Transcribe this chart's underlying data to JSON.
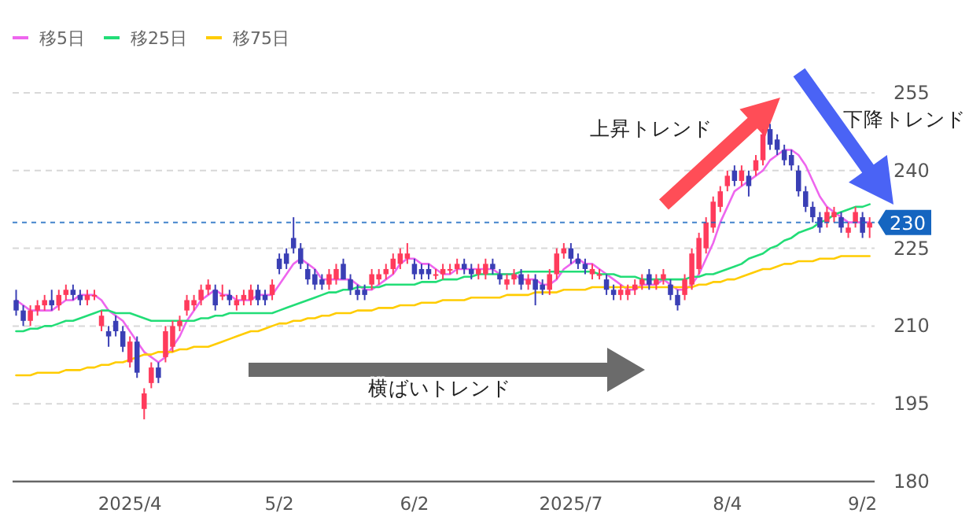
{
  "chart_data": {
    "type": "candlestick",
    "categories": [
      null,
      null,
      null,
      null,
      null,
      null,
      null,
      null,
      null,
      null,
      null,
      null,
      null,
      null,
      null,
      null,
      "2025/4",
      null,
      null,
      null,
      null,
      null,
      null,
      null,
      null,
      null,
      null,
      null,
      null,
      null,
      null,
      null,
      null,
      null,
      null,
      null,
      null,
      "5/2",
      null,
      null,
      null,
      null,
      null,
      null,
      null,
      null,
      null,
      null,
      null,
      null,
      null,
      null,
      null,
      null,
      null,
      null,
      "6/2",
      null,
      null,
      null,
      null,
      null,
      null,
      null,
      null,
      null,
      null,
      null,
      null,
      null,
      null,
      null,
      null,
      null,
      null,
      null,
      null,
      null,
      "2025/7",
      null,
      null,
      null,
      null,
      null,
      null,
      null,
      null,
      null,
      null,
      null,
      null,
      null,
      null,
      null,
      null,
      null,
      null,
      null,
      null,
      null,
      "8/4",
      null,
      null,
      null,
      null,
      null,
      null,
      null,
      null,
      null,
      null,
      null,
      null,
      null,
      null,
      null,
      null,
      null,
      null,
      "9/2",
      null
    ],
    "ohlc": [
      [
        215,
        217,
        212,
        213
      ],
      [
        213,
        214,
        210,
        211
      ],
      [
        211,
        214,
        210,
        213
      ],
      [
        213,
        215,
        212,
        214
      ],
      [
        214,
        216,
        213,
        215
      ],
      [
        215,
        217,
        213,
        214
      ],
      [
        214,
        217,
        213,
        216
      ],
      [
        216,
        218,
        215,
        217
      ],
      [
        217,
        218,
        215,
        216
      ],
      [
        216,
        217,
        214,
        215
      ],
      [
        215,
        217,
        214,
        216
      ],
      [
        216,
        217,
        215,
        216
      ],
      [
        210,
        213,
        209,
        212
      ],
      [
        209,
        210,
        206,
        208
      ],
      [
        211,
        212,
        208,
        209
      ],
      [
        209,
        210,
        205,
        206
      ],
      [
        203,
        208,
        202,
        207
      ],
      [
        207,
        208,
        200,
        201
      ],
      [
        194,
        198,
        192,
        197
      ],
      [
        199,
        203,
        198,
        202
      ],
      [
        202,
        203,
        199,
        200
      ],
      [
        204,
        210,
        203,
        209
      ],
      [
        206,
        211,
        205,
        210
      ],
      [
        210,
        212,
        209,
        211
      ],
      [
        213,
        216,
        212,
        215
      ],
      [
        214,
        216,
        213,
        215
      ],
      [
        215,
        218,
        214,
        217
      ],
      [
        217,
        219,
        216,
        218
      ],
      [
        217,
        218,
        213,
        214
      ],
      [
        216,
        218,
        215,
        216
      ],
      [
        216,
        217,
        214,
        215
      ],
      [
        214,
        216,
        213,
        215
      ],
      [
        215,
        217,
        214,
        216
      ],
      [
        215,
        218,
        214,
        217
      ],
      [
        217,
        218,
        214,
        215
      ],
      [
        216,
        217,
        214,
        215
      ],
      [
        216,
        219,
        215,
        218
      ],
      [
        223,
        224,
        220,
        221
      ],
      [
        224,
        225,
        221,
        222
      ],
      [
        227,
        231,
        224,
        225
      ],
      [
        225,
        226,
        221,
        222
      ],
      [
        221,
        222,
        218,
        219
      ],
      [
        220,
        221,
        217,
        218
      ],
      [
        219,
        220,
        217,
        218
      ],
      [
        218,
        221,
        217,
        220
      ],
      [
        219,
        222,
        218,
        221
      ],
      [
        222,
        223,
        219,
        219
      ],
      [
        219,
        220,
        216,
        217
      ],
      [
        217,
        218,
        215,
        216
      ],
      [
        217,
        218,
        215,
        216
      ],
      [
        218,
        221,
        217,
        220
      ],
      [
        219,
        221,
        218,
        220
      ],
      [
        220,
        222,
        219,
        221
      ],
      [
        221,
        224,
        220,
        223
      ],
      [
        222,
        225,
        221,
        224
      ],
      [
        223,
        226,
        222,
        224
      ],
      [
        222,
        223,
        219,
        220
      ],
      [
        221,
        222,
        219,
        220
      ],
      [
        221,
        222,
        219,
        220
      ],
      [
        220,
        221,
        219,
        220
      ],
      [
        220,
        222,
        219,
        221
      ],
      [
        221,
        222,
        220,
        221
      ],
      [
        221,
        223,
        220,
        222
      ],
      [
        222,
        223,
        220,
        221
      ],
      [
        221,
        222,
        219,
        220
      ],
      [
        220,
        222,
        219,
        221
      ],
      [
        220,
        223,
        219,
        222
      ],
      [
        222,
        223,
        220,
        221
      ],
      [
        220,
        221,
        218,
        219
      ],
      [
        218,
        220,
        217,
        219
      ],
      [
        219,
        221,
        218,
        220
      ],
      [
        220,
        221,
        217,
        218
      ],
      [
        218,
        220,
        217,
        219
      ],
      [
        219,
        220,
        214,
        217
      ],
      [
        218,
        219,
        216,
        217
      ],
      [
        217,
        221,
        216,
        220
      ],
      [
        220,
        225,
        219,
        224
      ],
      [
        224,
        226,
        223,
        225
      ],
      [
        225,
        226,
        222,
        223
      ],
      [
        223,
        224,
        221,
        222
      ],
      [
        222,
        223,
        220,
        221
      ],
      [
        220,
        222,
        219,
        221
      ],
      [
        220,
        221,
        219,
        220
      ],
      [
        219,
        220,
        216,
        217
      ],
      [
        217,
        218,
        215,
        216
      ],
      [
        216,
        218,
        215,
        217
      ],
      [
        216,
        218,
        215,
        217
      ],
      [
        217,
        219,
        216,
        218
      ],
      [
        218,
        220,
        217,
        219
      ],
      [
        220,
        221,
        217,
        218
      ],
      [
        218,
        220,
        217,
        219
      ],
      [
        219,
        221,
        218,
        220
      ],
      [
        218,
        219,
        215,
        216
      ],
      [
        216,
        217,
        213,
        214
      ],
      [
        216,
        220,
        215,
        219
      ],
      [
        218,
        225,
        217,
        224
      ],
      [
        221,
        228,
        220,
        227
      ],
      [
        225,
        231,
        224,
        230
      ],
      [
        229,
        235,
        228,
        234
      ],
      [
        233,
        237,
        232,
        236
      ],
      [
        237,
        240,
        236,
        239
      ],
      [
        240,
        241,
        237,
        238
      ],
      [
        238,
        241,
        237,
        240
      ],
      [
        239,
        240,
        235,
        237
      ],
      [
        240,
        243,
        239,
        242
      ],
      [
        242,
        248,
        241,
        247
      ],
      [
        248,
        249,
        244,
        245
      ],
      [
        246,
        247,
        243,
        244
      ],
      [
        244,
        245,
        241,
        242
      ],
      [
        243,
        244,
        240,
        241
      ],
      [
        240,
        241,
        235,
        236
      ],
      [
        236,
        237,
        232,
        233
      ],
      [
        233,
        234,
        230,
        231
      ],
      [
        231,
        232,
        228,
        229
      ],
      [
        230,
        233,
        229,
        232
      ],
      [
        231,
        233,
        230,
        232
      ],
      [
        231,
        232,
        228,
        229
      ],
      [
        228,
        230,
        227,
        229
      ],
      [
        230,
        233,
        229,
        232
      ],
      [
        231,
        232,
        227,
        228
      ],
      [
        229,
        231,
        227,
        230
      ]
    ],
    "series": [
      {
        "name": "移5日",
        "type": "line",
        "color": "#ee66ee",
        "values": [
          215,
          214,
          213,
          213,
          213,
          213,
          214,
          215,
          215,
          216,
          216,
          216,
          215,
          213,
          212,
          211,
          209,
          207,
          205,
          204,
          203,
          204,
          206,
          208,
          211,
          213,
          215,
          216,
          217,
          216,
          216,
          215,
          215,
          215,
          216,
          216,
          216,
          218,
          220,
          222,
          223,
          222,
          221,
          219,
          219,
          219,
          219,
          219,
          218,
          217,
          217,
          218,
          219,
          220,
          222,
          223,
          223,
          222,
          222,
          221,
          220,
          220,
          221,
          221,
          221,
          221,
          221,
          221,
          220,
          220,
          220,
          219,
          219,
          219,
          218,
          218,
          219,
          221,
          222,
          223,
          222,
          222,
          221,
          220,
          219,
          218,
          217,
          217,
          218,
          218,
          218,
          219,
          218,
          217,
          217,
          218,
          220,
          223,
          226,
          230,
          233,
          236,
          237,
          238,
          239,
          240,
          242,
          243,
          244,
          244,
          243,
          241,
          238,
          235,
          233,
          232,
          231,
          230,
          230,
          230,
          230
        ]
      },
      {
        "name": "移25日",
        "type": "line",
        "color": "#22dd77",
        "values": [
          209,
          209,
          209.5,
          209.5,
          210,
          210,
          210.5,
          211,
          211,
          211.5,
          212,
          212.5,
          213,
          213,
          212.5,
          212.5,
          212.5,
          212,
          211.5,
          211,
          211,
          211,
          211,
          211,
          211,
          211,
          211.5,
          211.5,
          212,
          212,
          212.5,
          212.5,
          212.5,
          212.5,
          212.5,
          212.5,
          212.5,
          213,
          213.5,
          214,
          214.5,
          215,
          215.5,
          216,
          216.5,
          216.5,
          217,
          217,
          217.5,
          217.5,
          217.5,
          217.5,
          218,
          218,
          218,
          218,
          218,
          218.5,
          218.5,
          218.5,
          219,
          219,
          219,
          219.5,
          219.5,
          220,
          220,
          220,
          220,
          220,
          220,
          220.5,
          220.5,
          220.5,
          220.5,
          220.5,
          220.5,
          220.5,
          220.5,
          220.5,
          220.5,
          220.5,
          220,
          220,
          220,
          219.5,
          219.5,
          219.5,
          219,
          219,
          219,
          219,
          219,
          219,
          219,
          219.5,
          219.5,
          220,
          220,
          220.5,
          221,
          221.5,
          222,
          223,
          223.5,
          224,
          225,
          225.5,
          226.5,
          227,
          228,
          228.5,
          229,
          230,
          230.5,
          231.5,
          232,
          232.5,
          233,
          233,
          233.5
        ]
      },
      {
        "name": "移75日",
        "type": "line",
        "color": "#ffcc00",
        "values": [
          200.5,
          200.5,
          200.5,
          201,
          201,
          201,
          201,
          201.5,
          201.5,
          201.5,
          202,
          202,
          202.5,
          202.5,
          203,
          203,
          203.5,
          204,
          204.5,
          204.5,
          205,
          205,
          205,
          205.5,
          205.5,
          206,
          206,
          206,
          206.5,
          207,
          207.5,
          208,
          208.5,
          209,
          209,
          209.5,
          210,
          210.5,
          210.5,
          211,
          211,
          211.5,
          211.5,
          212,
          212,
          212.5,
          212.5,
          212.5,
          213,
          213,
          213,
          213.5,
          213.5,
          213.5,
          214,
          214,
          214,
          214.5,
          214.5,
          214.5,
          215,
          215,
          215,
          215,
          215.5,
          215.5,
          215.5,
          215.5,
          215.5,
          216,
          216,
          216,
          216,
          216.5,
          216.5,
          216.5,
          216.5,
          217,
          217,
          217,
          217,
          217.5,
          217.5,
          217.5,
          217.5,
          217.5,
          217.5,
          217.5,
          217.5,
          217.5,
          217.5,
          217.5,
          217.5,
          217.5,
          217.5,
          217.5,
          218,
          218,
          218.5,
          218.5,
          219,
          219,
          219.5,
          220,
          220.5,
          221,
          221,
          221.5,
          222,
          222,
          222.5,
          222.5,
          222.5,
          223,
          223,
          223,
          223.5,
          223.5,
          223.5,
          223.5,
          223.5
        ]
      }
    ],
    "ylim": [
      180,
      255
    ],
    "yticks": [
      180,
      195,
      210,
      225,
      240,
      255
    ],
    "grid": "y",
    "legend": "top left",
    "ref_lines": [
      {
        "axis": "y",
        "value": 230,
        "label": "230",
        "color": "#1565c0",
        "line_style": "dashed"
      }
    ],
    "annotations": [
      "上昇トレンド",
      "下降トレンド",
      "横ばいトレンド"
    ]
  }
}
